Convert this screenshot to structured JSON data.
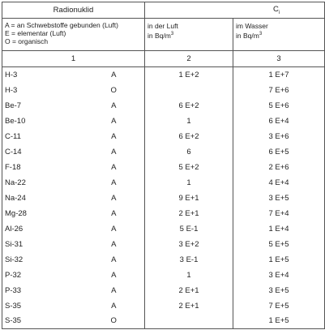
{
  "header": {
    "radionuclide": "Radionuklid",
    "symbol": "C",
    "symbol_sub": "i",
    "legend": [
      "A = an Schwebstoffe gebunden (Luft)",
      "E = elementar (Luft)",
      "O = organisch"
    ],
    "air": {
      "label": "in der Luft",
      "unit": "in Bq/m",
      "unit_exp": "3"
    },
    "water": {
      "label": "im Wasser",
      "unit": "in Bq/m",
      "unit_exp": "3"
    },
    "numbers": [
      "1",
      "2",
      "3"
    ]
  },
  "table": {
    "rows": [
      [
        "H-3",
        "A",
        "1 E+2",
        "1 E+7"
      ],
      [
        "H-3",
        "O",
        null,
        "7 E+6"
      ],
      [
        "Be-7",
        "A",
        "6 E+2",
        "5 E+6"
      ],
      [
        "Be-10",
        "A",
        "1",
        "6 E+4"
      ],
      [
        "C-11",
        "A",
        "6 E+2",
        "3 E+6"
      ],
      [
        "C-14",
        "A",
        "6",
        "6 E+5"
      ],
      [
        "F-18",
        "A",
        "5 E+2",
        "2 E+6"
      ],
      [
        "Na-22",
        "A",
        "1",
        "4 E+4"
      ],
      [
        "Na-24",
        "A",
        "9 E+1",
        "3 E+5"
      ],
      [
        "Mg-28",
        "A",
        "2 E+1",
        "7 E+4"
      ],
      [
        "Al-26",
        "A",
        "5 E-1",
        "1 E+4"
      ],
      [
        "Si-31",
        "A",
        "3 E+2",
        "5 E+5"
      ],
      [
        "Si-32",
        "A",
        "3 E-1",
        "1 E+5"
      ],
      [
        "P-32",
        "A",
        "1",
        "3 E+4"
      ],
      [
        "P-33",
        "A",
        "2 E+1",
        "3 E+5"
      ],
      [
        "S-35",
        "A",
        "2 E+1",
        "7 E+5"
      ],
      [
        "S-35",
        "O",
        null,
        "1 E+5"
      ]
    ]
  }
}
